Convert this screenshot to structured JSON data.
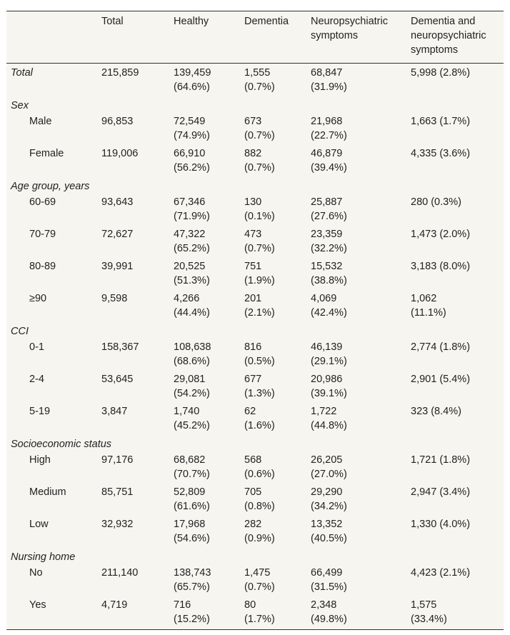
{
  "headers": [
    "",
    "Total",
    "Healthy",
    "Dementia",
    "Neuropsychiatric\nsymptoms",
    "Dementia and\nneuropsychiatric\nsymptoms"
  ],
  "rows": [
    {
      "type": "total",
      "cells": [
        "Total",
        "215,859",
        "139,459\n(64.6%)",
        "1,555\n(0.7%)",
        "68,847\n(31.9%)",
        "5,998 (2.8%)"
      ]
    },
    {
      "type": "category",
      "cells": [
        "Sex"
      ]
    },
    {
      "type": "sub",
      "cells": [
        "Male",
        "96,853",
        "72,549\n(74.9%)",
        "673\n(0.7%)",
        "21,968\n(22.7%)",
        "1,663 (1.7%)"
      ]
    },
    {
      "type": "sub",
      "cells": [
        "Female",
        "119,006",
        "66,910\n(56.2%)",
        "882\n(0.7%)",
        "46,879\n(39.4%)",
        "4,335 (3.6%)"
      ]
    },
    {
      "type": "category",
      "cells": [
        "Age group, years"
      ]
    },
    {
      "type": "sub",
      "cells": [
        "60-69",
        "93,643",
        "67,346\n(71.9%)",
        "130\n(0.1%)",
        "25,887\n(27.6%)",
        "280 (0.3%)"
      ]
    },
    {
      "type": "sub",
      "cells": [
        "70-79",
        "72,627",
        "47,322\n(65.2%)",
        "473\n(0.7%)",
        "23,359\n(32.2%)",
        "1,473 (2.0%)"
      ]
    },
    {
      "type": "sub",
      "cells": [
        "80-89",
        "39,991",
        "20,525\n(51.3%)",
        "751\n(1.9%)",
        "15,532\n(38.8%)",
        "3,183 (8.0%)"
      ]
    },
    {
      "type": "sub",
      "cells": [
        "≥90",
        "9,598",
        "4,266\n(44.4%)",
        "201\n(2.1%)",
        "4,069\n(42.4%)",
        "1,062\n(11.1%)"
      ]
    },
    {
      "type": "category",
      "cells": [
        "CCI"
      ]
    },
    {
      "type": "sub",
      "cells": [
        "0-1",
        "158,367",
        "108,638\n(68.6%)",
        "816\n(0.5%)",
        "46,139\n(29.1%)",
        "2,774 (1.8%)"
      ]
    },
    {
      "type": "sub",
      "cells": [
        "2-4",
        "53,645",
        "29,081\n(54.2%)",
        "677\n(1.3%)",
        "20,986\n(39.1%)",
        "2,901 (5.4%)"
      ]
    },
    {
      "type": "sub",
      "cells": [
        "5-19",
        "3,847",
        "1,740\n(45.2%)",
        "62\n(1.6%)",
        "1,722\n(44.8%)",
        "323 (8.4%)"
      ]
    },
    {
      "type": "category",
      "cells": [
        "Socioeconomic status"
      ]
    },
    {
      "type": "sub",
      "cells": [
        "High",
        "97,176",
        "68,682\n(70.7%)",
        "568\n(0.6%)",
        "26,205\n(27.0%)",
        "1,721 (1.8%)"
      ]
    },
    {
      "type": "sub",
      "cells": [
        "Medium",
        "85,751",
        "52,809\n(61.6%)",
        "705\n(0.8%)",
        "29,290\n(34.2%)",
        "2,947 (3.4%)"
      ]
    },
    {
      "type": "sub",
      "cells": [
        "Low",
        "32,932",
        "17,968\n(54.6%)",
        "282\n(0.9%)",
        "13,352\n(40.5%)",
        "1,330 (4.0%)"
      ]
    },
    {
      "type": "category",
      "cells": [
        "Nursing home"
      ]
    },
    {
      "type": "sub",
      "cells": [
        "No",
        "211,140",
        "138,743\n(65.7%)",
        "1,475\n(0.7%)",
        "66,499\n(31.5%)",
        "4,423 (2.1%)"
      ]
    },
    {
      "type": "sub",
      "cells": [
        "Yes",
        "4,719",
        "716\n(15.2%)",
        "80\n(1.7%)",
        "2,348\n(49.8%)",
        "1,575\n(33.4%)"
      ]
    }
  ]
}
